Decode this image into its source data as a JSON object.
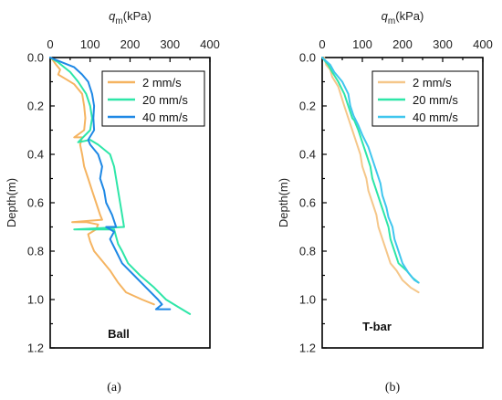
{
  "chart_data": [
    {
      "type": "line",
      "panel_label": "Ball",
      "caption": "(a)",
      "xlabel_symbol": "q",
      "xlabel_sub": "m",
      "xlabel_unit": "(kPa)",
      "ylabel": "Depth(m)",
      "xlim": [
        0,
        400
      ],
      "ylim": [
        0,
        1.2
      ],
      "x_ticks": [
        "0",
        "100",
        "200",
        "300",
        "400"
      ],
      "y_ticks": [
        "0.0",
        "0.2",
        "0.4",
        "0.6",
        "0.8",
        "1.0",
        "1.2"
      ],
      "x_axis_position": "top",
      "y_inverted": true,
      "legend_position": "top-right",
      "series": [
        {
          "name": "2 mm/s",
          "color": "#f5b461",
          "points": [
            [
              2,
              0.0
            ],
            [
              15,
              0.03
            ],
            [
              25,
              0.05
            ],
            [
              20,
              0.07
            ],
            [
              40,
              0.09
            ],
            [
              60,
              0.11
            ],
            [
              70,
              0.13
            ],
            [
              80,
              0.15
            ],
            [
              85,
              0.2
            ],
            [
              88,
              0.25
            ],
            [
              85,
              0.3
            ],
            [
              60,
              0.33
            ],
            [
              80,
              0.33
            ],
            [
              75,
              0.36
            ],
            [
              80,
              0.4
            ],
            [
              85,
              0.45
            ],
            [
              95,
              0.5
            ],
            [
              105,
              0.55
            ],
            [
              115,
              0.6
            ],
            [
              125,
              0.65
            ],
            [
              130,
              0.67
            ],
            [
              55,
              0.68
            ],
            [
              90,
              0.68
            ],
            [
              120,
              0.69
            ],
            [
              115,
              0.71
            ],
            [
              95,
              0.73
            ],
            [
              100,
              0.76
            ],
            [
              110,
              0.8
            ],
            [
              130,
              0.84
            ],
            [
              150,
              0.88
            ],
            [
              170,
              0.93
            ],
            [
              190,
              0.97
            ],
            [
              230,
              1.0
            ],
            [
              260,
              1.02
            ]
          ]
        },
        {
          "name": "20 mm/s",
          "color": "#2ee6a8",
          "points": [
            [
              0,
              0.0
            ],
            [
              20,
              0.02
            ],
            [
              35,
              0.04
            ],
            [
              50,
              0.06
            ],
            [
              70,
              0.1
            ],
            [
              90,
              0.15
            ],
            [
              100,
              0.2
            ],
            [
              105,
              0.25
            ],
            [
              100,
              0.3
            ],
            [
              70,
              0.35
            ],
            [
              100,
              0.34
            ],
            [
              120,
              0.36
            ],
            [
              150,
              0.4
            ],
            [
              160,
              0.45
            ],
            [
              165,
              0.5
            ],
            [
              170,
              0.55
            ],
            [
              175,
              0.6
            ],
            [
              180,
              0.65
            ],
            [
              185,
              0.7
            ],
            [
              60,
              0.71
            ],
            [
              160,
              0.71
            ],
            [
              165,
              0.74
            ],
            [
              170,
              0.77
            ],
            [
              180,
              0.8
            ],
            [
              195,
              0.85
            ],
            [
              225,
              0.9
            ],
            [
              260,
              0.95
            ],
            [
              290,
              1.0
            ],
            [
              320,
              1.03
            ],
            [
              350,
              1.06
            ]
          ]
        },
        {
          "name": "40 mm/s",
          "color": "#1e88e5",
          "points": [
            [
              0,
              0.0
            ],
            [
              30,
              0.02
            ],
            [
              60,
              0.04
            ],
            [
              80,
              0.07
            ],
            [
              95,
              0.1
            ],
            [
              105,
              0.15
            ],
            [
              110,
              0.2
            ],
            [
              108,
              0.25
            ],
            [
              110,
              0.3
            ],
            [
              95,
              0.34
            ],
            [
              100,
              0.36
            ],
            [
              120,
              0.4
            ],
            [
              130,
              0.45
            ],
            [
              125,
              0.5
            ],
            [
              135,
              0.55
            ],
            [
              140,
              0.6
            ],
            [
              155,
              0.65
            ],
            [
              165,
              0.7
            ],
            [
              140,
              0.7
            ],
            [
              160,
              0.72
            ],
            [
              150,
              0.75
            ],
            [
              165,
              0.8
            ],
            [
              180,
              0.85
            ],
            [
              210,
              0.9
            ],
            [
              240,
              0.95
            ],
            [
              270,
              1.0
            ],
            [
              280,
              1.02
            ],
            [
              265,
              1.04
            ],
            [
              300,
              1.04
            ]
          ]
        }
      ]
    },
    {
      "type": "line",
      "panel_label": "T-bar",
      "caption": "(b)",
      "xlabel_symbol": "q",
      "xlabel_sub": "m",
      "xlabel_unit": "(kPa)",
      "ylabel": "Depth(m)",
      "xlim": [
        0,
        400
      ],
      "ylim": [
        0,
        1.2
      ],
      "x_ticks": [
        "0",
        "100",
        "200",
        "300",
        "400"
      ],
      "y_ticks": [
        "0.0",
        "0.2",
        "0.4",
        "0.6",
        "0.8",
        "1.0",
        "1.2"
      ],
      "x_axis_position": "top",
      "y_inverted": true,
      "legend_position": "top-right",
      "series": [
        {
          "name": "2 mm/s",
          "color": "#f5c78a",
          "points": [
            [
              5,
              0.0
            ],
            [
              10,
              0.03
            ],
            [
              20,
              0.05
            ],
            [
              25,
              0.08
            ],
            [
              40,
              0.12
            ],
            [
              55,
              0.2
            ],
            [
              65,
              0.25
            ],
            [
              75,
              0.3
            ],
            [
              85,
              0.35
            ],
            [
              95,
              0.4
            ],
            [
              100,
              0.45
            ],
            [
              110,
              0.5
            ],
            [
              115,
              0.55
            ],
            [
              125,
              0.6
            ],
            [
              135,
              0.65
            ],
            [
              140,
              0.7
            ],
            [
              150,
              0.75
            ],
            [
              160,
              0.8
            ],
            [
              170,
              0.85
            ],
            [
              185,
              0.88
            ],
            [
              200,
              0.92
            ],
            [
              220,
              0.95
            ],
            [
              240,
              0.97
            ]
          ]
        },
        {
          "name": "20 mm/s",
          "color": "#2ee6a8",
          "points": [
            [
              0,
              0.0
            ],
            [
              15,
              0.03
            ],
            [
              25,
              0.06
            ],
            [
              40,
              0.1
            ],
            [
              55,
              0.15
            ],
            [
              65,
              0.2
            ],
            [
              75,
              0.25
            ],
            [
              80,
              0.26
            ],
            [
              90,
              0.3
            ],
            [
              100,
              0.35
            ],
            [
              110,
              0.4
            ],
            [
              120,
              0.45
            ],
            [
              125,
              0.5
            ],
            [
              135,
              0.55
            ],
            [
              145,
              0.6
            ],
            [
              155,
              0.65
            ],
            [
              165,
              0.7
            ],
            [
              170,
              0.75
            ],
            [
              180,
              0.8
            ],
            [
              190,
              0.85
            ],
            [
              210,
              0.88
            ],
            [
              225,
              0.91
            ],
            [
              240,
              0.93
            ]
          ]
        },
        {
          "name": "40 mm/s",
          "color": "#3fc6ee",
          "points": [
            [
              0,
              0.0
            ],
            [
              20,
              0.03
            ],
            [
              30,
              0.06
            ],
            [
              50,
              0.1
            ],
            [
              65,
              0.15
            ],
            [
              70,
              0.2
            ],
            [
              78,
              0.24
            ],
            [
              90,
              0.28
            ],
            [
              100,
              0.32
            ],
            [
              115,
              0.37
            ],
            [
              125,
              0.42
            ],
            [
              135,
              0.47
            ],
            [
              145,
              0.52
            ],
            [
              150,
              0.57
            ],
            [
              160,
              0.62
            ],
            [
              165,
              0.66
            ],
            [
              175,
              0.7
            ],
            [
              180,
              0.75
            ],
            [
              190,
              0.8
            ],
            [
              200,
              0.85
            ],
            [
              215,
              0.89
            ],
            [
              230,
              0.92
            ],
            [
              240,
              0.93
            ]
          ]
        }
      ]
    }
  ]
}
